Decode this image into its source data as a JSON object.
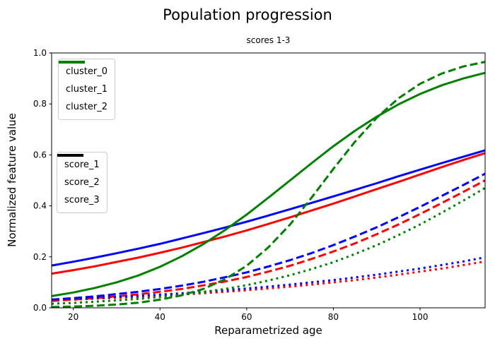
{
  "figure": {
    "title": "Population progression",
    "axes_title": "scores 1-3",
    "xlabel": "Reparametrized age",
    "ylabel": "Normalized feature value",
    "background": "#ffffff",
    "spine_color": "#000000"
  },
  "legends": {
    "clusters": {
      "items": [
        {
          "label": "cluster_0",
          "color": "#ff0000",
          "linestyle": "solid"
        },
        {
          "label": "cluster_1",
          "color": "#0000ff",
          "linestyle": "solid"
        },
        {
          "label": "cluster_2",
          "color": "#008000",
          "linestyle": "solid"
        }
      ]
    },
    "scores": {
      "items": [
        {
          "label": "score_1",
          "color": "#000000",
          "linestyle": "solid"
        },
        {
          "label": "score_2",
          "color": "#000000",
          "linestyle": "dashed"
        },
        {
          "label": "score_3",
          "color": "#000000",
          "linestyle": "dotted"
        }
      ]
    }
  },
  "chart_data": {
    "type": "line",
    "title": "Population progression",
    "subtitle": "scores 1-3",
    "xlabel": "Reparametrized age",
    "ylabel": "Normalized feature value",
    "xlim": [
      15,
      115
    ],
    "ylim": [
      0.0,
      1.0
    ],
    "xticks": [
      20,
      40,
      60,
      80,
      100
    ],
    "yticks": [
      0.0,
      0.2,
      0.4,
      0.6,
      0.8,
      1.0
    ],
    "ytick_labels": [
      "0.0",
      "0.2",
      "0.4",
      "0.6",
      "0.8",
      "1.0"
    ],
    "grid": false,
    "legend_position": "upper left",
    "x": [
      15,
      20,
      25,
      30,
      35,
      40,
      45,
      50,
      55,
      60,
      65,
      70,
      75,
      80,
      85,
      90,
      95,
      100,
      105,
      110,
      115
    ],
    "series": [
      {
        "name": "cluster_0_score_1",
        "cluster": "cluster_0",
        "score": "score_1",
        "color": "#ff0000",
        "linestyle": "solid",
        "values": [
          0.134,
          0.148,
          0.163,
          0.18,
          0.197,
          0.216,
          0.236,
          0.258,
          0.28,
          0.304,
          0.329,
          0.355,
          0.382,
          0.409,
          0.437,
          0.466,
          0.494,
          0.523,
          0.552,
          0.58,
          0.607
        ]
      },
      {
        "name": "cluster_0_score_2",
        "cluster": "cluster_0",
        "score": "score_2",
        "color": "#ff0000",
        "linestyle": "dashed",
        "values": [
          0.027,
          0.032,
          0.038,
          0.045,
          0.053,
          0.063,
          0.074,
          0.088,
          0.103,
          0.121,
          0.142,
          0.165,
          0.192,
          0.221,
          0.253,
          0.289,
          0.327,
          0.368,
          0.411,
          0.455,
          0.5
        ]
      },
      {
        "name": "cluster_0_score_3",
        "cluster": "cluster_0",
        "score": "score_3",
        "color": "#ff0000",
        "linestyle": "dotted",
        "values": [
          0.029,
          0.032,
          0.036,
          0.039,
          0.043,
          0.047,
          0.052,
          0.057,
          0.063,
          0.069,
          0.076,
          0.083,
          0.091,
          0.1,
          0.109,
          0.119,
          0.13,
          0.142,
          0.154,
          0.168,
          0.182
        ]
      },
      {
        "name": "cluster_1_score_1",
        "cluster": "cluster_1",
        "score": "score_1",
        "color": "#0000ff",
        "linestyle": "solid",
        "values": [
          0.166,
          0.181,
          0.197,
          0.214,
          0.232,
          0.251,
          0.272,
          0.293,
          0.315,
          0.338,
          0.362,
          0.387,
          0.412,
          0.437,
          0.463,
          0.489,
          0.516,
          0.542,
          0.568,
          0.593,
          0.618
        ]
      },
      {
        "name": "cluster_1_score_2",
        "cluster": "cluster_1",
        "score": "score_2",
        "color": "#0000ff",
        "linestyle": "dashed",
        "values": [
          0.032,
          0.038,
          0.045,
          0.054,
          0.063,
          0.074,
          0.087,
          0.102,
          0.12,
          0.139,
          0.162,
          0.187,
          0.215,
          0.246,
          0.28,
          0.316,
          0.355,
          0.396,
          0.439,
          0.482,
          0.526
        ]
      },
      {
        "name": "cluster_1_score_3",
        "cluster": "cluster_1",
        "score": "score_3",
        "color": "#0000ff",
        "linestyle": "dotted",
        "values": [
          0.032,
          0.036,
          0.039,
          0.043,
          0.047,
          0.052,
          0.057,
          0.063,
          0.069,
          0.076,
          0.083,
          0.091,
          0.1,
          0.109,
          0.119,
          0.13,
          0.142,
          0.154,
          0.168,
          0.182,
          0.198
        ]
      },
      {
        "name": "cluster_2_score_1",
        "cluster": "cluster_2",
        "score": "score_1",
        "color": "#008000",
        "linestyle": "solid",
        "values": [
          0.046,
          0.06,
          0.078,
          0.1,
          0.127,
          0.161,
          0.202,
          0.25,
          0.305,
          0.366,
          0.432,
          0.5,
          0.568,
          0.634,
          0.695,
          0.75,
          0.798,
          0.839,
          0.873,
          0.9,
          0.922
        ]
      },
      {
        "name": "cluster_2_score_2",
        "cluster": "cluster_2",
        "score": "score_2",
        "color": "#008000",
        "linestyle": "dashed",
        "values": [
          0.003,
          0.005,
          0.008,
          0.013,
          0.02,
          0.032,
          0.049,
          0.074,
          0.112,
          0.165,
          0.237,
          0.327,
          0.433,
          0.545,
          0.652,
          0.746,
          0.822,
          0.879,
          0.919,
          0.947,
          0.965
        ]
      },
      {
        "name": "cluster_2_score_3",
        "cluster": "cluster_2",
        "score": "score_3",
        "color": "#008000",
        "linestyle": "dotted",
        "values": [
          0.016,
          0.019,
          0.024,
          0.029,
          0.035,
          0.042,
          0.051,
          0.062,
          0.074,
          0.089,
          0.107,
          0.128,
          0.152,
          0.179,
          0.211,
          0.246,
          0.285,
          0.327,
          0.373,
          0.421,
          0.47
        ]
      }
    ]
  }
}
